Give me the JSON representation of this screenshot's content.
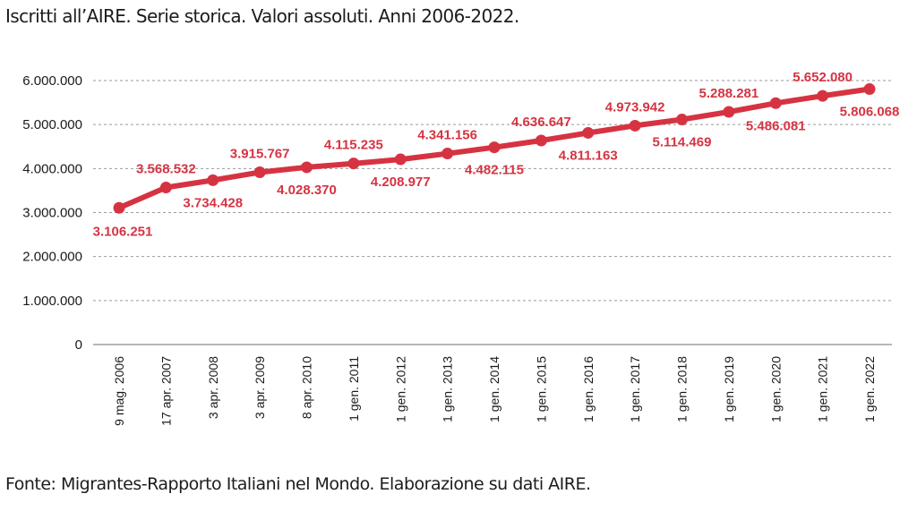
{
  "title": "Iscritti all’AIRE. Serie storica. Valori assoluti. Anni 2006-2022.",
  "source": "Fonte: Migrantes-Rapporto Italiani nel Mondo. Elaborazione su dati AIRE.",
  "colors": {
    "line": "#d63342",
    "label": "#d63342",
    "grid": "#9a9a9a",
    "axis_text": "#1a1a1a"
  },
  "chart_data": {
    "type": "line",
    "title": "Iscritti all’AIRE. Serie storica. Valori assoluti. Anni 2006-2022.",
    "xlabel": "",
    "ylabel": "",
    "ylim": [
      0,
      6000000
    ],
    "yticks": [
      0,
      1000000,
      2000000,
      3000000,
      4000000,
      5000000,
      6000000
    ],
    "ytick_labels": [
      "0",
      "1.000.000",
      "2.000.000",
      "3.000.000",
      "4.000.000",
      "5.000.000",
      "6.000.000"
    ],
    "grid": "horizontal dashed",
    "categories": [
      "9 mag. 2006",
      "17 apr. 2007",
      "3 apr. 2008",
      "3 apr. 2009",
      "8 apr. 2010",
      "1 gen. 2011",
      "1 gen. 2012",
      "1 gen. 2013",
      "1 gen. 2014",
      "1 gen. 2015",
      "1 gen. 2016",
      "1 gen. 2017",
      "1 gen. 2018",
      "1 gen. 2019",
      "1 gen. 2020",
      "1 gen. 2021",
      "1 gen. 2022"
    ],
    "values": [
      3106251,
      3568532,
      3734428,
      3915767,
      4028370,
      4115235,
      4208977,
      4341156,
      4482115,
      4636647,
      4811163,
      4973942,
      5114469,
      5288281,
      5486081,
      5652080,
      5806068
    ],
    "value_labels": [
      "3.106.251",
      "3.568.532",
      "3.734.428",
      "3.915.767",
      "4.028.370",
      "4.115.235",
      "4.208.977",
      "4.341.156",
      "4.482.115",
      "4.636.647",
      "4.811.163",
      "4.973.942",
      "5.114.469",
      "5.288.281",
      "5.486.081",
      "5.652.080",
      "5.806.068"
    ],
    "label_positions": [
      "below",
      "above",
      "below",
      "above",
      "below",
      "above",
      "below",
      "above",
      "below",
      "above",
      "below",
      "above",
      "below",
      "above",
      "below",
      "above",
      "below"
    ]
  }
}
